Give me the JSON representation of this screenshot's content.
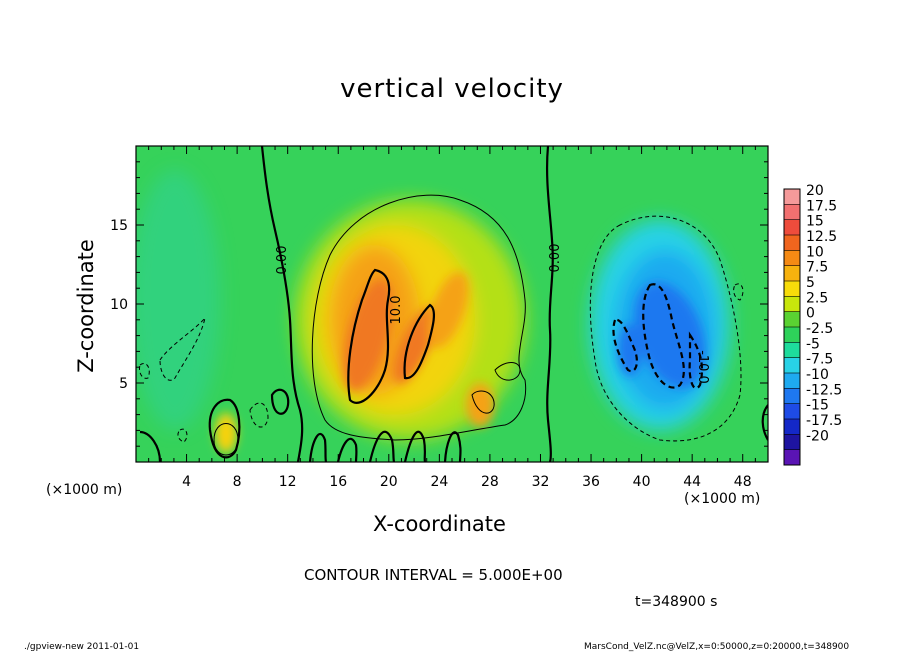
{
  "chart_data": {
    "type": "heatmap",
    "title": "vertical velocity",
    "xlabel": "X-coordinate",
    "ylabel": "Z-coordinate",
    "x_unit_left": "(×1000 m)",
    "x_unit_right": "(×1000 m)",
    "xlim": [
      0,
      50
    ],
    "ylim": [
      0,
      20
    ],
    "x_ticks": [
      4,
      8,
      12,
      16,
      20,
      24,
      28,
      32,
      36,
      40,
      44,
      48
    ],
    "y_ticks": [
      5,
      10,
      15
    ],
    "colorbar": {
      "labels": [
        "20",
        "17.5",
        "15",
        "12.5",
        "10",
        "7.5",
        "5",
        "2.5",
        "0",
        "-2.5",
        "-5",
        "-7.5",
        "-10",
        "-12.5",
        "-15",
        "-17.5",
        "-20"
      ],
      "colors": [
        "#f59a9a",
        "#f27070",
        "#ee4c3c",
        "#f0651e",
        "#f58a14",
        "#f7b20e",
        "#f7dc0a",
        "#c8e60c",
        "#5ad232",
        "#2ed25a",
        "#1edc9c",
        "#28d2e6",
        "#1eaaf0",
        "#1e78f0",
        "#1e4be6",
        "#1428c8",
        "#1e14a0",
        "#5a14b4"
      ]
    },
    "contour_interval_text": "CONTOUR INTERVAL = 5.000E+00",
    "contour_labels": [
      "0.00",
      "10.0",
      "0.00",
      "-10.0"
    ],
    "time_label": "t=348900 s",
    "updraft_peak_region": {
      "x": [
        16,
        24
      ],
      "z": [
        4,
        12
      ],
      "min_value": 10
    },
    "downdraft_region": {
      "x": [
        38,
        46
      ],
      "z": [
        4,
        12
      ],
      "max_value": -10
    }
  },
  "footer": {
    "left": "./gpview-new  2011-01-01",
    "right": "MarsCond_VelZ.nc@VelZ,x=0:50000,z=0:20000,t=348900"
  }
}
